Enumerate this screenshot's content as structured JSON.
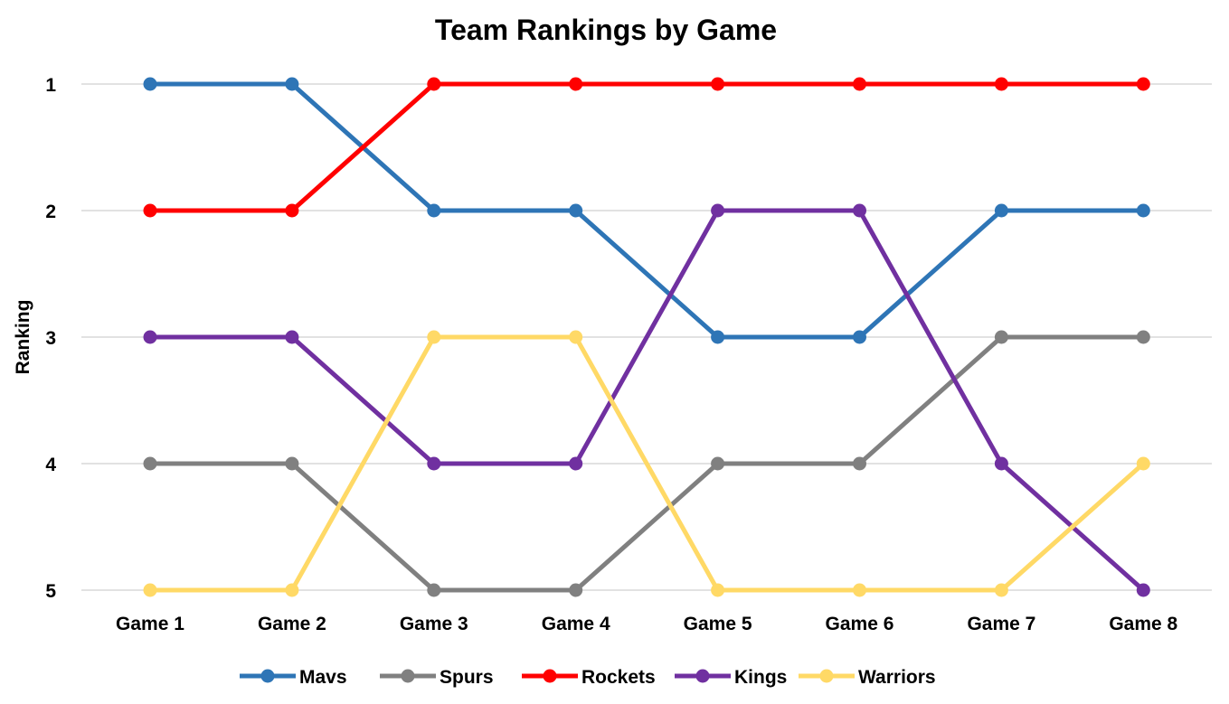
{
  "chart_data": {
    "type": "line",
    "title": "Team Rankings by Game",
    "xlabel": "",
    "ylabel": "Ranking",
    "categories": [
      "Game 1",
      "Game 2",
      "Game 3",
      "Game 4",
      "Game 5",
      "Game 6",
      "Game 7",
      "Game 8"
    ],
    "y_ticks": [
      "1",
      "2",
      "3",
      "4",
      "5"
    ],
    "ylim": [
      1,
      5
    ],
    "y_reversed": true,
    "grid": true,
    "legend_position": "bottom",
    "series": [
      {
        "name": "Mavs",
        "color": "#2E75B6",
        "values": [
          1,
          1,
          2,
          2,
          3,
          3,
          2,
          2
        ]
      },
      {
        "name": "Spurs",
        "color": "#808080",
        "values": [
          4,
          4,
          5,
          5,
          4,
          4,
          3,
          3
        ]
      },
      {
        "name": "Rockets",
        "color": "#FF0000",
        "values": [
          2,
          2,
          1,
          1,
          1,
          1,
          1,
          1
        ]
      },
      {
        "name": "Kings",
        "color": "#7030A0",
        "values": [
          3,
          3,
          4,
          4,
          2,
          2,
          4,
          5
        ]
      },
      {
        "name": "Warriors",
        "color": "#FFD966",
        "values": [
          5,
          5,
          3,
          3,
          5,
          5,
          5,
          4
        ]
      }
    ]
  }
}
